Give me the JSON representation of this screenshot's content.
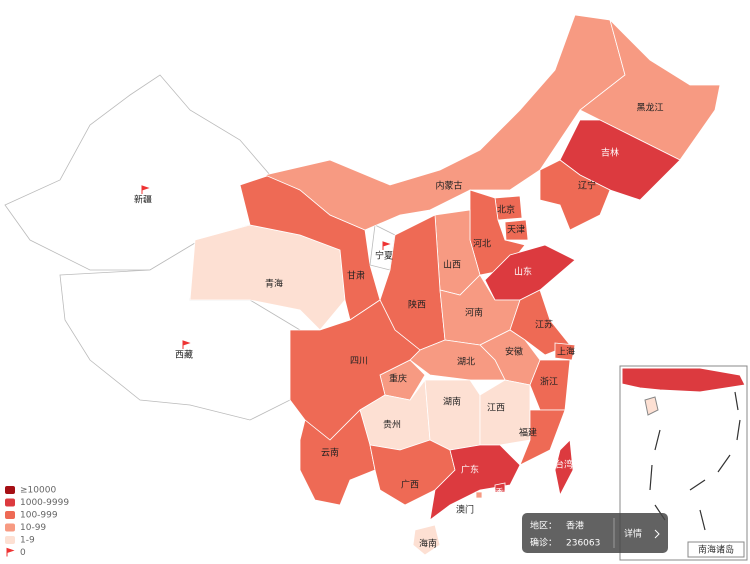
{
  "legend": [
    {
      "label": "≥10000",
      "color": "#a50f15"
    },
    {
      "label": "1000-9999",
      "color": "#dc3a3f"
    },
    {
      "label": "100-999",
      "color": "#ee6a55"
    },
    {
      "label": "10-99",
      "color": "#f79a82"
    },
    {
      "label": "1-9",
      "color": "#fde0d3"
    },
    {
      "label": "0",
      "color": "#ffffff"
    }
  ],
  "provinces": [
    {
      "name": "新疆",
      "level": 5
    },
    {
      "name": "西藏",
      "level": 5
    },
    {
      "name": "青海",
      "level": 4
    },
    {
      "name": "甘肃",
      "level": 2
    },
    {
      "name": "宁夏",
      "level": 5
    },
    {
      "name": "内蒙古",
      "level": 3
    },
    {
      "name": "黑龙江",
      "level": 3
    },
    {
      "name": "吉林",
      "level": 1
    },
    {
      "name": "辽宁",
      "level": 2
    },
    {
      "name": "北京",
      "level": 2
    },
    {
      "name": "天津",
      "level": 2
    },
    {
      "name": "河北",
      "level": 2
    },
    {
      "name": "山西",
      "level": 3
    },
    {
      "name": "陕西",
      "level": 2
    },
    {
      "name": "山东",
      "level": 1
    },
    {
      "name": "河南",
      "level": 3
    },
    {
      "name": "江苏",
      "level": 2
    },
    {
      "name": "安徽",
      "level": 3
    },
    {
      "name": "上海",
      "level": 2
    },
    {
      "name": "浙江",
      "level": 2
    },
    {
      "name": "湖北",
      "level": 3
    },
    {
      "name": "重庆",
      "level": 3
    },
    {
      "name": "四川",
      "level": 2
    },
    {
      "name": "贵州",
      "level": 4
    },
    {
      "name": "湖南",
      "level": 4
    },
    {
      "name": "江西",
      "level": 4
    },
    {
      "name": "福建",
      "level": 2
    },
    {
      "name": "云南",
      "level": 2
    },
    {
      "name": "广西",
      "level": 2
    },
    {
      "name": "广东",
      "level": 1
    },
    {
      "name": "台湾",
      "level": 1
    },
    {
      "name": "香港",
      "level": 1
    },
    {
      "name": "澳门",
      "level": 3
    },
    {
      "name": "海南",
      "level": 4
    }
  ],
  "inset_label": "南海诸岛",
  "tooltip": {
    "region_label": "地区：",
    "region": "香港",
    "cases_label": "确诊：",
    "cases": 236063,
    "button": "详情"
  }
}
